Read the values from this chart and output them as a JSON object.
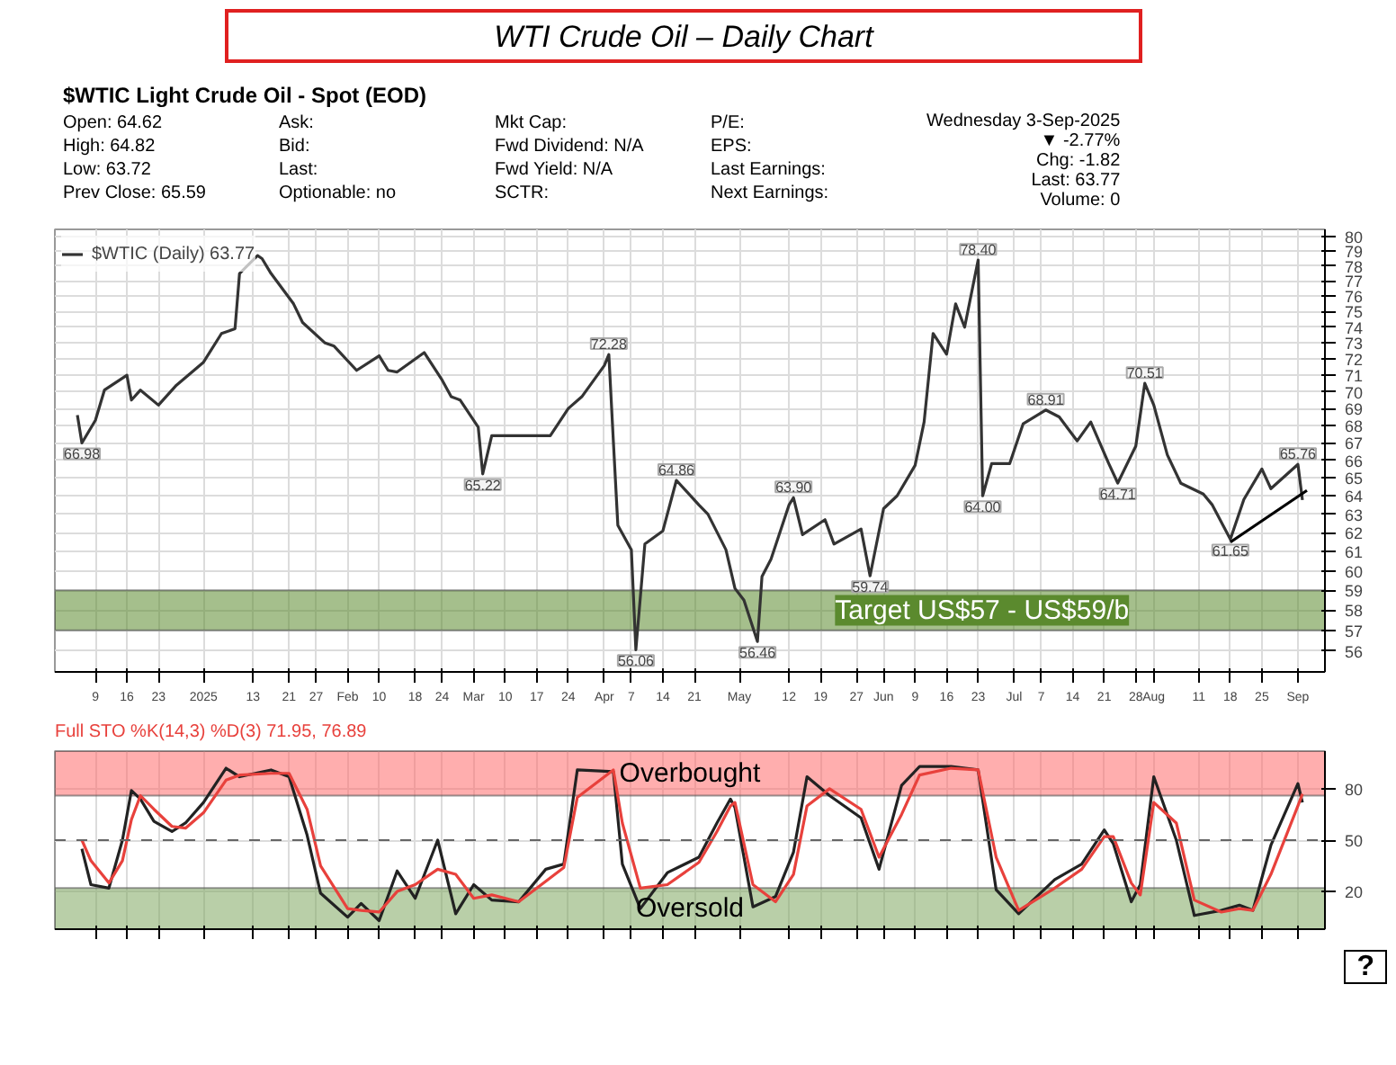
{
  "chart_data": [
    {
      "type": "line",
      "title": "WTI Crude Oil – Daily Chart",
      "subtitle": "$WTIC Light Crude Oil - Spot (EOD)",
      "x": [
        "2024-12-05",
        "2024-12-06",
        "2024-12-09",
        "2024-12-11",
        "2024-12-16",
        "2024-12-17",
        "2024-12-19",
        "2024-12-23",
        "2024-12-27",
        "2025-01-02",
        "2025-01-06",
        "2025-01-09",
        "2025-01-10",
        "2025-01-14",
        "2025-01-15",
        "2025-01-17",
        "2025-01-22",
        "2025-01-24",
        "2025-01-29",
        "2025-01-31",
        "2025-02-05",
        "2025-02-10",
        "2025-02-12",
        "2025-02-14",
        "2025-02-20",
        "2025-02-24",
        "2025-02-26",
        "2025-02-28",
        "2025-03-04",
        "2025-03-05",
        "2025-03-07",
        "2025-03-12",
        "2025-03-17",
        "2025-03-20",
        "2025-03-24",
        "2025-03-27",
        "2025-04-01",
        "2025-04-02",
        "2025-04-03",
        "2025-04-04",
        "2025-04-07",
        "2025-04-08",
        "2025-04-10",
        "2025-04-14",
        "2025-04-17",
        "2025-04-22",
        "2025-04-24",
        "2025-04-28",
        "2025-04-30",
        "2025-05-02",
        "2025-05-05",
        "2025-05-06",
        "2025-05-08",
        "2025-05-12",
        "2025-05-13",
        "2025-05-15",
        "2025-05-20",
        "2025-05-22",
        "2025-05-28",
        "2025-05-30",
        "2025-06-02",
        "2025-06-05",
        "2025-06-09",
        "2025-06-11",
        "2025-06-13",
        "2025-06-16",
        "2025-06-18",
        "2025-06-20",
        "2025-06-23",
        "2025-06-24",
        "2025-06-26",
        "2025-06-30",
        "2025-07-03",
        "2025-07-08",
        "2025-07-11",
        "2025-07-15",
        "2025-07-18",
        "2025-07-22",
        "2025-07-24",
        "2025-07-28",
        "2025-07-30",
        "2025-08-01",
        "2025-08-04",
        "2025-08-07",
        "2025-08-12",
        "2025-08-14",
        "2025-08-18",
        "2025-08-21",
        "2025-08-25",
        "2025-08-27",
        "2025-09-02",
        "2025-09-03"
      ],
      "series": [
        {
          "name": "$WTIC (Daily) 63.77",
          "color": "#333333",
          "values": [
            68.6,
            66.98,
            68.3,
            70.1,
            71.0,
            69.5,
            70.1,
            69.2,
            70.4,
            71.8,
            73.6,
            73.9,
            77.5,
            78.7,
            78.5,
            77.5,
            75.5,
            74.3,
            73.0,
            72.8,
            71.3,
            72.2,
            71.3,
            71.2,
            72.4,
            70.7,
            69.7,
            69.5,
            67.9,
            65.22,
            67.4,
            67.4,
            67.4,
            67.4,
            69.0,
            69.7,
            71.6,
            72.28,
            67.1,
            62.4,
            61.1,
            56.06,
            61.4,
            62.1,
            64.86,
            63.5,
            63.0,
            61.1,
            59.1,
            58.5,
            56.46,
            59.7,
            60.6,
            63.5,
            63.9,
            61.9,
            62.7,
            61.4,
            62.2,
            59.74,
            63.3,
            64.0,
            65.7,
            68.2,
            73.6,
            72.3,
            75.5,
            74.0,
            78.4,
            64.0,
            65.8,
            65.8,
            68.1,
            68.91,
            68.5,
            67.1,
            68.2,
            65.8,
            64.71,
            66.8,
            70.51,
            69.2,
            66.3,
            64.7,
            64.1,
            63.5,
            61.65,
            63.8,
            65.5,
            64.4,
            65.76,
            63.77
          ]
        },
        {
          "type": "line",
          "color": "#000000",
          "x": [
            "2025-08-18",
            "2025-09-04"
          ],
          "values": [
            61.5,
            64.3
          ]
        }
      ],
      "log": "y",
      "xlim": [
        "2024-11-30",
        "2025-09-08"
      ],
      "ylim": [
        55.0,
        80.5
      ],
      "xticks": [
        {
          "value": "2024-12-09",
          "label": "9"
        },
        {
          "value": "2024-12-16",
          "label": "16"
        },
        {
          "value": "2024-12-23",
          "label": "23"
        },
        {
          "value": "2025-01-02",
          "label": "2025"
        },
        {
          "value": "2025-01-13",
          "label": "13"
        },
        {
          "value": "2025-01-21",
          "label": "21"
        },
        {
          "value": "2025-01-27",
          "label": "27"
        },
        {
          "value": "2025-02-03",
          "label": "Feb"
        },
        {
          "value": "2025-02-10",
          "label": "10"
        },
        {
          "value": "2025-02-18",
          "label": "18"
        },
        {
          "value": "2025-02-24",
          "label": "24"
        },
        {
          "value": "2025-03-03",
          "label": "Mar"
        },
        {
          "value": "2025-03-10",
          "label": "10"
        },
        {
          "value": "2025-03-17",
          "label": "17"
        },
        {
          "value": "2025-03-24",
          "label": "24"
        },
        {
          "value": "2025-04-01",
          "label": "Apr"
        },
        {
          "value": "2025-04-07",
          "label": "7"
        },
        {
          "value": "2025-04-14",
          "label": "14"
        },
        {
          "value": "2025-04-21",
          "label": "21"
        },
        {
          "value": "2025-05-01",
          "label": "May"
        },
        {
          "value": "2025-05-12",
          "label": "12"
        },
        {
          "value": "2025-05-19",
          "label": "19"
        },
        {
          "value": "2025-05-27",
          "label": "27"
        },
        {
          "value": "2025-06-02",
          "label": "Jun"
        },
        {
          "value": "2025-06-09",
          "label": "9"
        },
        {
          "value": "2025-06-16",
          "label": "16"
        },
        {
          "value": "2025-06-23",
          "label": "23"
        },
        {
          "value": "2025-07-01",
          "label": "Jul"
        },
        {
          "value": "2025-07-07",
          "label": "7"
        },
        {
          "value": "2025-07-14",
          "label": "14"
        },
        {
          "value": "2025-07-21",
          "label": "21"
        },
        {
          "value": "2025-07-28",
          "label": "28"
        },
        {
          "value": "2025-08-01",
          "label": "Aug"
        },
        {
          "value": "2025-08-11",
          "label": "11"
        },
        {
          "value": "2025-08-18",
          "label": "18"
        },
        {
          "value": "2025-08-25",
          "label": "25"
        },
        {
          "value": "2025-09-02",
          "label": "Sep"
        }
      ],
      "yticks": [
        56,
        57,
        58,
        59,
        60,
        61,
        62,
        63,
        64,
        65,
        66,
        67,
        68,
        69,
        70,
        71,
        72,
        73,
        74,
        75,
        76,
        77,
        78,
        79,
        80
      ],
      "grid": true,
      "legend": "top left",
      "bands": [
        {
          "axis": "y",
          "from": 57,
          "to": 59,
          "label": "Target US$57 - US$59/b",
          "color": "#5b8a2e"
        }
      ],
      "annotations": [
        "Open: 64.62",
        "High: 64.82",
        "Low: 63.72",
        "Prev Close: 65.59",
        "Ask:",
        "Bid:",
        "Last:",
        "Optionable: no",
        "Mkt Cap:",
        "Fwd Dividend: N/A",
        "Fwd Yield: N/A",
        "SCTR:",
        "P/E:",
        "EPS:",
        "Last Earnings:",
        "Next Earnings:",
        "Wednesday 3-Sep-2025",
        "▼ -2.77%",
        "Chg: -1.82",
        "Last: 63.77",
        "Volume: 0",
        {
          "text": "66.98",
          "x": "2024-12-06",
          "y": 66.98
        },
        {
          "text": "65.22",
          "x": "2025-03-05",
          "y": 65.22
        },
        {
          "text": "72.28",
          "x": "2025-04-02",
          "y": 72.28
        },
        {
          "text": "56.06",
          "x": "2025-04-08",
          "y": 56.06
        },
        {
          "text": "64.86",
          "x": "2025-04-17",
          "y": 64.86
        },
        {
          "text": "56.46",
          "x": "2025-05-05",
          "y": 56.46
        },
        {
          "text": "63.90",
          "x": "2025-05-13",
          "y": 63.9
        },
        {
          "text": "59.74",
          "x": "2025-05-30",
          "y": 59.74
        },
        {
          "text": "78.40",
          "x": "2025-06-23",
          "y": 78.4
        },
        {
          "text": "64.00",
          "x": "2025-06-24",
          "y": 64.0
        },
        {
          "text": "68.91",
          "x": "2025-07-08",
          "y": 68.91
        },
        {
          "text": "64.71",
          "x": "2025-07-24",
          "y": 64.71
        },
        {
          "text": "70.51",
          "x": "2025-07-30",
          "y": 70.51
        },
        {
          "text": "61.65",
          "x": "2025-08-18",
          "y": 61.65
        },
        {
          "text": "65.76",
          "x": "2025-09-02",
          "y": 65.76
        }
      ]
    },
    {
      "type": "line",
      "x": [
        "2024-12-06",
        "2024-12-08",
        "2024-12-12",
        "2024-12-15",
        "2024-12-17",
        "2024-12-19",
        "2024-12-22",
        "2024-12-26",
        "2024-12-29",
        "2025-01-02",
        "2025-01-07",
        "2025-01-10",
        "2025-01-17",
        "2025-01-21",
        "2025-01-25",
        "2025-01-28",
        "2025-02-03",
        "2025-02-06",
        "2025-02-10",
        "2025-02-14",
        "2025-02-18",
        "2025-02-23",
        "2025-02-27",
        "2025-03-03",
        "2025-03-07",
        "2025-03-13",
        "2025-03-19",
        "2025-03-23",
        "2025-03-26",
        "2025-04-03",
        "2025-04-05",
        "2025-04-09",
        "2025-04-15",
        "2025-04-22",
        "2025-04-26",
        "2025-04-29",
        "2025-04-30",
        "2025-05-04",
        "2025-05-09",
        "2025-05-13",
        "2025-05-16",
        "2025-05-21",
        "2025-05-28",
        "2025-06-01",
        "2025-06-06",
        "2025-06-10",
        "2025-06-17",
        "2025-06-23",
        "2025-06-27",
        "2025-07-02",
        "2025-07-10",
        "2025-07-16",
        "2025-07-21",
        "2025-07-23",
        "2025-07-27",
        "2025-07-29",
        "2025-08-01",
        "2025-08-06",
        "2025-08-10",
        "2025-08-16",
        "2025-08-20",
        "2025-08-23",
        "2025-08-27",
        "2025-09-02",
        "2025-09-03"
      ],
      "series": [
        {
          "color": "#222222",
          "values": [
            45,
            24,
            22,
            50,
            79,
            74,
            61,
            55,
            60,
            72,
            92,
            87,
            91,
            87,
            53,
            19,
            5,
            13,
            3,
            32,
            16,
            50,
            7,
            24,
            15,
            14,
            33,
            36,
            91,
            90,
            36,
            10,
            31,
            40,
            60,
            74,
            69,
            11,
            17,
            43,
            87,
            76,
            63,
            33,
            82,
            93,
            93,
            91,
            21,
            7,
            27,
            36,
            56,
            48,
            14,
            24,
            87,
            50,
            6,
            9,
            12,
            9,
            47,
            83,
            72
          ]
        },
        {
          "color": "#e8413c",
          "values": [
            50,
            38,
            25,
            38,
            62,
            76,
            68,
            58,
            57,
            66,
            85,
            88,
            89,
            89,
            68,
            35,
            10,
            9,
            8,
            20,
            24,
            33,
            30,
            16,
            18,
            14,
            26,
            34,
            75,
            91,
            60,
            22,
            24,
            37,
            55,
            70,
            72,
            24,
            14,
            30,
            70,
            80,
            68,
            40,
            65,
            88,
            92,
            91,
            40,
            9,
            22,
            33,
            52,
            52,
            25,
            18,
            72,
            60,
            15,
            8,
            10,
            9,
            30,
            70,
            77
          ]
        }
      ],
      "xlim": [
        "2024-11-30",
        "2025-09-08"
      ],
      "ylim": [
        -2,
        102
      ],
      "xticks": [
        {
          "value": "2024-12-09",
          "label": null
        },
        {
          "value": "2024-12-16",
          "label": null
        },
        {
          "value": "2024-12-23",
          "label": null
        },
        {
          "value": "2025-01-02",
          "label": null
        },
        {
          "value": "2025-01-13",
          "label": null
        },
        {
          "value": "2025-01-21",
          "label": null
        },
        {
          "value": "2025-01-27",
          "label": null
        },
        {
          "value": "2025-02-03",
          "label": null
        },
        {
          "value": "2025-02-10",
          "label": null
        },
        {
          "value": "2025-02-18",
          "label": null
        },
        {
          "value": "2025-02-24",
          "label": null
        },
        {
          "value": "2025-03-03",
          "label": null
        },
        {
          "value": "2025-03-10",
          "label": null
        },
        {
          "value": "2025-03-17",
          "label": null
        },
        {
          "value": "2025-03-24",
          "label": null
        },
        {
          "value": "2025-04-01",
          "label": null
        },
        {
          "value": "2025-04-07",
          "label": null
        },
        {
          "value": "2025-04-14",
          "label": null
        },
        {
          "value": "2025-04-21",
          "label": null
        },
        {
          "value": "2025-05-01",
          "label": null
        },
        {
          "value": "2025-05-12",
          "label": null
        },
        {
          "value": "2025-05-19",
          "label": null
        },
        {
          "value": "2025-05-27",
          "label": null
        },
        {
          "value": "2025-06-02",
          "label": null
        },
        {
          "value": "2025-06-09",
          "label": null
        },
        {
          "value": "2025-06-16",
          "label": null
        },
        {
          "value": "2025-06-23",
          "label": null
        },
        {
          "value": "2025-07-01",
          "label": null
        },
        {
          "value": "2025-07-07",
          "label": null
        },
        {
          "value": "2025-07-14",
          "label": null
        },
        {
          "value": "2025-07-21",
          "label": null
        },
        {
          "value": "2025-07-28",
          "label": null
        },
        {
          "value": "2025-08-01",
          "label": null
        },
        {
          "value": "2025-08-11",
          "label": null
        },
        {
          "value": "2025-08-18",
          "label": null
        },
        {
          "value": "2025-08-25",
          "label": null
        },
        {
          "value": "2025-09-02",
          "label": null
        }
      ],
      "yticks": [
        20,
        50,
        80
      ],
      "tick_labels": "y",
      "grid": true,
      "ref_lines": [
        {
          "axis": "y",
          "value": 50,
          "line_style": "dashed",
          "color": "#666666"
        }
      ],
      "bands": [
        {
          "axis": "y",
          "from": 76,
          "to": 102,
          "label": "Overbought",
          "color": "#ff6b6b"
        },
        {
          "axis": "y",
          "from": -2,
          "to": 22,
          "label": "Oversold",
          "color": "#7fa860"
        }
      ],
      "annotations": [
        "Full STO %K(14,3) %D(3) 71.95, 76.89",
        "?"
      ]
    }
  ]
}
